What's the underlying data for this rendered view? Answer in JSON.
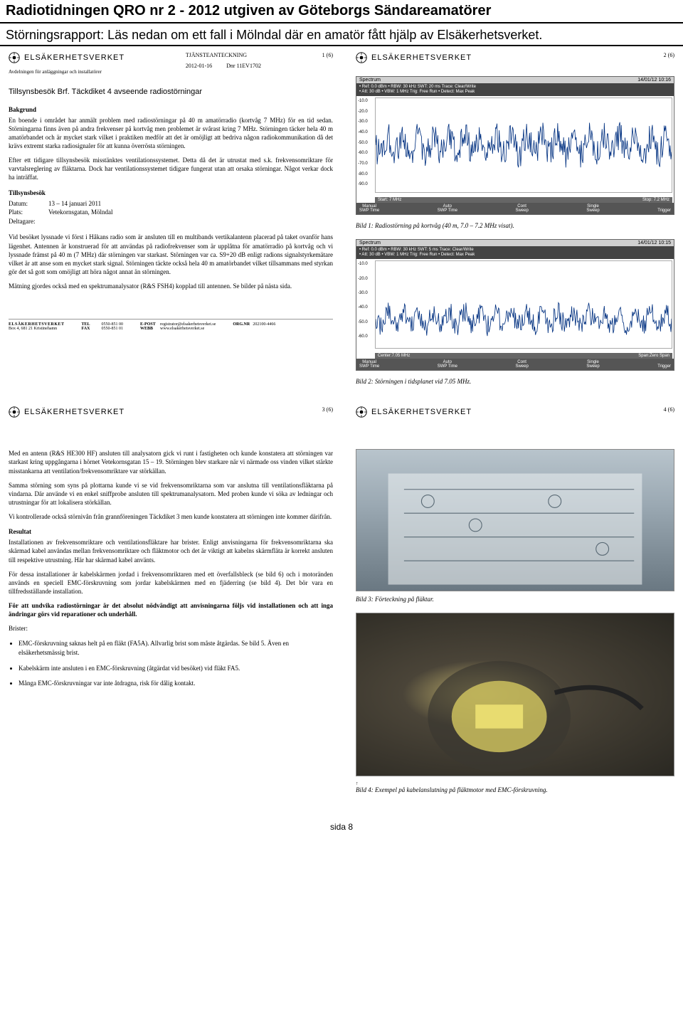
{
  "header": {
    "title": "Radiotidningen QRO nr 2 - 2012 utgiven av Göteborgs Sändareamatörer",
    "subtitle": "Störningsrapport: Läs nedan om ett fall i Mölndal där en amatör fått hjälp av Elsäkerhetsverket."
  },
  "agency_name": "ELSÄKERHETSVERKET",
  "page1": {
    "num": "1 (6)",
    "doc_type": "TJÄNSTEANTECKNING",
    "date": "2012-01-16",
    "dnr": "Dnr 11EV1702",
    "dept": "Avdelningen för anläggningar och installatörer",
    "title": "Tillsynsbesök Brf. Täckdiket 4 avseende radiostörningar",
    "sec1_head": "Bakgrund",
    "sec1_p1": "En boende i området har anmält problem med radiostörningar på 40 m amatörradio (kortvåg 7 MHz) för en tid sedan. Störningarna finns även på andra frekvenser på kortvåg men problemet är svårast kring 7 MHz. Störningen täcker hela 40 m amatörbandet och är mycket stark vilket i praktiken medför att det är omöjligt att bedriva någon radiokommunikation då det krävs extremt starka radiosignaler för att kunna överrösta störningen.",
    "sec1_p2": "Efter ett tidigare tillsynsbesök misstänktes ventilationssystemet. Detta då det är utrustat med s.k. frekvensomriktare för varvtalsreglering av fläktarna. Dock har ventilationssystemet tidigare fungerat utan att orsaka störningar. Något verkar dock ha inträffat.",
    "sec2_head": "Tillsynsbesök",
    "datum_lbl": "Datum:",
    "datum_val": "13 – 14 januari 2011",
    "plats_lbl": "Plats:",
    "plats_val": "Vetekornsgatan, Mölndal",
    "deltagare_lbl": "Deltagare:",
    "sec2_p1": "Vid besöket lyssnade vi först i Håkans radio som är ansluten till en multibands vertikalantenn placerad på taket ovanför hans lägenhet. Antennen är konstruerad för att användas på radiofrekvenser som är upplåtna för amatörradio på kortvåg och vi lyssnade främst på 40 m (7 MHz) där störningen var starkast. Störningen var ca. S9+20 dB enligt radions signalstyrkemätare vilket är att anse som en mycket stark signal. Störningen täckte också hela 40 m amatörbandet vilket tillsammans med styrkan gör det så gott som omöjligt att höra något annat än störningen.",
    "sec2_p2": "Mätning gjordes också med en spektrumanalysator (R&S FSH4) kopplad till antennen. Se bilder på nästa sida.",
    "footer": {
      "addr1": "ELSÄKERHETSVERKET",
      "addr2": "Box 4, 681 21 Kristinehamn",
      "tel_lbl": "TEL",
      "tel": "0550-851 00",
      "fax_lbl": "FAX",
      "fax": "0550-851 01",
      "epost_lbl": "E-POST",
      "epost": "registrator@elsakerhetsverket.se",
      "webb_lbl": "WEBB",
      "webb": "www.elsakerhetsverket.se",
      "org_lbl": "ORG.NR",
      "org": "202100-4466"
    }
  },
  "page2": {
    "num": "2 (6)",
    "spec1": {
      "title_l": "Spectrum",
      "title_r": "14/01/12  10:16",
      "info1": "• Ref: 0.0 dBm     • RBW: 30 kHz    SWT: 20 ms    Trace:  Clear/Write",
      "info2": "• Att: 30 dB         • VBW: 1 MHz    Trig:  Free Run • Detect: Max Peak",
      "ylabels": [
        "-10.0",
        "-20.0",
        "-30.0",
        "-40.0",
        "-50.0",
        "-60.0",
        "-70.0",
        "-80.0",
        "-90.0"
      ],
      "xstart": "Start: 7 MHz",
      "xstop": "Stop: 7.2 MHz",
      "btm": [
        "Manual",
        "Auto",
        "Cont",
        "Single",
        ""
      ],
      "btm2": [
        "SWP Time",
        "SWP Time",
        "Sweep",
        "Sweep",
        "Trigger"
      ],
      "trace_color": "#003080"
    },
    "caption1": "Bild 1: Radiostörning på kortvåg (40 m, 7.0 – 7.2 MHz visat).",
    "spec2": {
      "title_l": "Spectrum",
      "title_r": "14/01/12  10:15",
      "info1": "• Ref: 0.0 dBm     • RBW: 30 kHz    SWT: 5 ms     Trace:  Clear/Write",
      "info2": "• Att: 30 dB         • VBW: 1 MHz    Trig:  Free Run • Detect: Max Peak",
      "ylabels": [
        "-10.0",
        "-20.0",
        "-30.0",
        "-40.0",
        "-50.0",
        "-60.0"
      ],
      "xcenter": "Center:7.05 MHz",
      "xspan": "Span:Zero Span",
      "btm": [
        "Manual",
        "Auto",
        "Cont",
        "Single",
        ""
      ],
      "btm2": [
        "SWP Time",
        "SWP Time",
        "Sweep",
        "Sweep",
        "Trigger"
      ],
      "trace_color": "#003080"
    },
    "caption2": "Bild 2: Störningen i tidsplanet vid 7.05 MHz."
  },
  "page3": {
    "num": "3 (6)",
    "p1": "Med en antenn (R&S HE300 HF) ansluten till analysatorn gick vi runt i fastigheten och kunde konstatera att störningen var starkast kring uppgångarna i hörnet Vetekornsgatan 15 – 19. Störningen blev starkare när vi närmade oss vinden vilket stärkte misstankarna att ventilation/frekvensomriktare var störkällan.",
    "p2": "Samma störning som syns på plottarna kunde vi se vid frekvensomriktarna som var anslutna till ventilationsfläktarna på vindarna. Där använde vi en enkel sniffprobe ansluten till spektrumanalysatorn. Med proben kunde vi söka av ledningar och utrustningar för att lokalisera störkällan.",
    "p3": "Vi kontrollerade också störnivån från grannföreningen Täckdiket 3 men kunde konstatera att störningen inte kommer därifrån.",
    "sec_head": "Resultat",
    "p4": "Installationen av frekvensomriktare och ventilationsfläktare har brister. Enligt anvisningarna för frekvensomriktarna ska skärmad kabel användas mellan frekvensomriktare och fläktmotor och det är viktigt att kabelns skärmfläta är korrekt ansluten till respektive utrustning. Här har skärmad kabel använts.",
    "p5": "För dessa installationer är kabelskärmen jordad i frekvensomriktaren med ett överfallsbleck (se bild 6) och i motoränden används en speciell EMC-förskruvning som jordar kabelskärmen med en fjäderring (se bild 4). Det bör vara en tillfredsställande installation.",
    "p6": "För att undvika radiostörningar är det absolut nödvändigt att anvisningarna följs vid installationen och att inga ändringar görs vid reparationer och underhåll.",
    "p7": "Brister:",
    "b1": "EMC-förskruvning saknas helt på en fläkt (FA5A). Allvarlig brist som måste åtgärdas. Se bild 5. Även en elsäkerhetsmässig brist.",
    "b2": "Kabelskärm inte ansluten i en EMC-förskruvning (åtgärdat vid besöket) vid fläkt FA5.",
    "b3": "Många EMC-förskruvningar var inte åtdragna, risk för dålig kontakt."
  },
  "page4": {
    "num": "4 (6)",
    "caption3": "Bild 3: Förteckning på fläktar.",
    "caption4": "Bild 4: Exempel på kabelanslutning på fläktmotor med EMC-förskruvning."
  },
  "footer_page": "sida 8",
  "colors": {
    "text": "#000000",
    "border": "#000000",
    "spec_bg": "#f4f4f4",
    "spec_dark": "#444444"
  }
}
